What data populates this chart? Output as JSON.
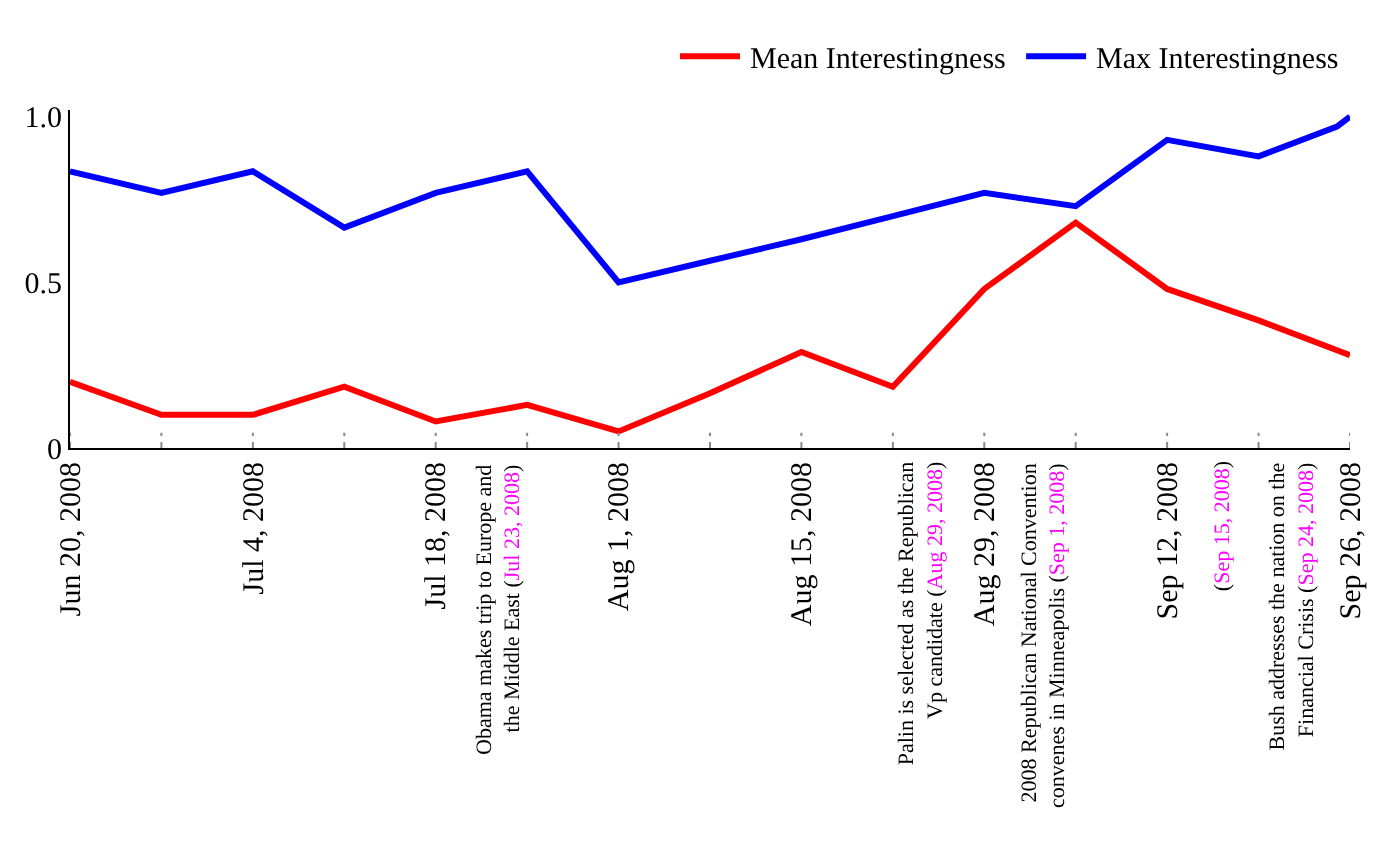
{
  "chart_data": {
    "type": "line",
    "x": [
      "2008-06-20",
      "2008-06-27",
      "2008-07-04",
      "2008-07-11",
      "2008-07-18",
      "2008-07-25",
      "2008-08-01",
      "2008-08-08",
      "2008-08-15",
      "2008-08-22",
      "2008-08-29",
      "2008-09-05",
      "2008-09-12",
      "2008-09-19",
      "2008-09-26"
    ],
    "series": [
      {
        "name": "Mean Interestingness",
        "color": "#ff0000",
        "values": [
          0.2,
          0.1,
          0.1,
          0.185,
          0.08,
          0.13,
          0.05,
          0.165,
          0.29,
          0.185,
          0.48,
          0.68,
          0.48,
          0.385,
          0.28
        ]
      },
      {
        "name": "Max Interestingness",
        "color": "#0000ff",
        "x": [
          "2008-06-20",
          "2008-06-27",
          "2008-07-04",
          "2008-07-11",
          "2008-07-18",
          "2008-07-25",
          "2008-08-01",
          "2008-08-08",
          "2008-08-15",
          "2008-08-22",
          "2008-08-29",
          "2008-09-05",
          "2008-09-12",
          "2008-09-19",
          "2008-09-25",
          "2008-09-26"
        ],
        "values": [
          0.835,
          0.77,
          0.835,
          0.665,
          0.77,
          0.835,
          0.5,
          0.565,
          0.63,
          0.7,
          0.77,
          0.73,
          0.93,
          0.88,
          0.97,
          1.0
        ]
      }
    ],
    "xlim": [
      "2008-06-20",
      "2008-09-26"
    ],
    "xticks": [
      {
        "value": "2008-06-20",
        "label": "Jun 20, 2008"
      },
      {
        "value": "2008-06-27",
        "label": null
      },
      {
        "value": "2008-07-04",
        "label": "Jul 4, 2008"
      },
      {
        "value": "2008-07-11",
        "label": null
      },
      {
        "value": "2008-07-18",
        "label": "Jul 18, 2008"
      },
      {
        "value": "2008-07-25",
        "label": null
      },
      {
        "value": "2008-08-01",
        "label": "Aug 1, 2008"
      },
      {
        "value": "2008-08-08",
        "label": null
      },
      {
        "value": "2008-08-15",
        "label": "Aug 15, 2008"
      },
      {
        "value": "2008-08-22",
        "label": null
      },
      {
        "value": "2008-08-29",
        "label": "Aug 29, 2008"
      },
      {
        "value": "2008-09-05",
        "label": null
      },
      {
        "value": "2008-09-12",
        "label": "Sep 12, 2008"
      },
      {
        "value": "2008-09-19",
        "label": null
      },
      {
        "value": "2008-09-26",
        "label": "Sep 26, 2008"
      }
    ],
    "ylim": [
      0,
      1.02
    ],
    "yticks": [
      0,
      0.5,
      {
        "value": 1.0,
        "label": "1.0"
      }
    ],
    "annotations": [
      "Obama makes trip to Europe and\nthe Middle East (Jul 23, 2008)",
      "Palin is selected as the Republican\nVp candidate (Aug 29, 2008)",
      "2008 Republican National Convention\nconvenes in Minneapolis (Sep 1, 2008)",
      "(Sep 15, 2008)",
      "Bush addresses the nation on the\nFinancial Crisis (Sep 24, 2008)"
    ],
    "legend": "top right",
    "marker": "none",
    "line_style": "solid"
  }
}
